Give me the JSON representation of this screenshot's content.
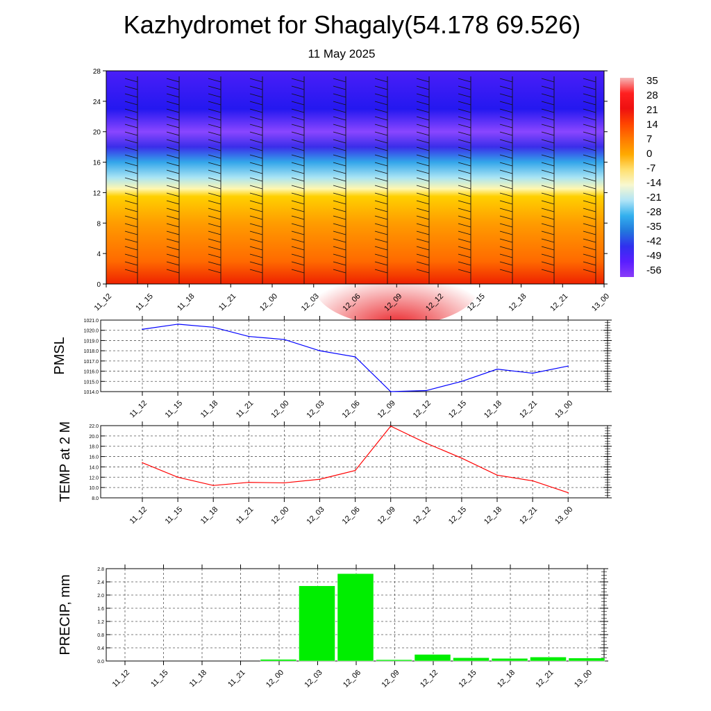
{
  "header": {
    "title": "Kazhydromet for Shagaly(54.178 69.526)",
    "subtitle": "11 May 2025"
  },
  "chart_data": [
    {
      "type": "heatmap",
      "title": "Kazhydromet for Shagaly(54.178 69.526)",
      "subtitle": "11 May 2025",
      "x_ticks": [
        "11_12",
        "11_15",
        "11_18",
        "11_21",
        "12_00",
        "12_03",
        "12_06",
        "12_09",
        "12_12",
        "12_15",
        "12_18",
        "12_21",
        "13_00"
      ],
      "y_ticks": [
        0,
        4,
        8,
        12,
        16,
        20,
        24,
        28
      ],
      "ylim": [
        0,
        28
      ],
      "colorbar": {
        "labels": [
          "35",
          "28",
          "21",
          "14",
          "7",
          "0",
          "-7",
          "-14",
          "-21",
          "-28",
          "-35",
          "-42",
          "-49",
          "-56"
        ],
        "range": [
          -56,
          35
        ]
      },
      "color_stops": [
        {
          "level": 0,
          "color": "#ee2200"
        },
        {
          "level": 3,
          "color": "#ff6a00"
        },
        {
          "level": 8,
          "color": "#ff9c00"
        },
        {
          "level": 11.5,
          "color": "#ffd000"
        },
        {
          "level": 12.5,
          "color": "#fff7b0"
        },
        {
          "level": 14,
          "color": "#a8e4f4"
        },
        {
          "level": 16,
          "color": "#33a6ea"
        },
        {
          "level": 18,
          "color": "#3a2eea"
        },
        {
          "level": 20,
          "color": "#8a46ff"
        },
        {
          "level": 23,
          "color": "#2418f0"
        },
        {
          "level": 28,
          "color": "#4a1ef8"
        }
      ],
      "grid": false,
      "wind_barbs": true
    },
    {
      "type": "line",
      "ylabel": "PMSL",
      "categories": [
        "11_12",
        "11_15",
        "11_18",
        "11_21",
        "12_00",
        "12_03",
        "12_06",
        "12_09",
        "12_12",
        "12_15",
        "12_18",
        "12_21",
        "13_00"
      ],
      "series": [
        {
          "values": [
            1020.1,
            1020.6,
            1020.3,
            1019.4,
            1019.1,
            1018.0,
            1017.4,
            1014.0,
            1014.1,
            1015.0,
            1016.2,
            1015.8,
            1016.5
          ],
          "color": "#0000ff"
        }
      ],
      "y_ticks": [
        "1014.0",
        "1015.0",
        "1016.0",
        "1017.0",
        "1018.0",
        "1019.0",
        "1020.0",
        "1021.0"
      ],
      "ylim": [
        1014,
        1021
      ],
      "grid": true
    },
    {
      "type": "line",
      "ylabel": "TEMP at 2 M",
      "categories": [
        "11_12",
        "11_15",
        "11_18",
        "11_21",
        "12_00",
        "12_03",
        "12_06",
        "12_09",
        "12_12",
        "12_15",
        "12_18",
        "12_21",
        "13_00"
      ],
      "series": [
        {
          "values": [
            14.8,
            12.0,
            10.4,
            11.0,
            10.9,
            11.6,
            13.3,
            21.9,
            18.6,
            15.7,
            12.4,
            11.3,
            9.0
          ],
          "color": "#ff0000"
        }
      ],
      "y_ticks": [
        "8.0",
        "10.0",
        "12.0",
        "14.0",
        "16.0",
        "18.0",
        "20.0",
        "22.0"
      ],
      "ylim": [
        8,
        22
      ],
      "grid": true
    },
    {
      "type": "bar",
      "ylabel": "PRECIP, mm",
      "categories": [
        "11_12",
        "11_15",
        "11_18",
        "11_21",
        "12_00",
        "12_03",
        "12_06",
        "12_09",
        "12_12",
        "12_15",
        "12_18",
        "12_21",
        "13_00"
      ],
      "values": [
        0,
        0,
        0,
        0,
        0.05,
        2.28,
        2.65,
        0.04,
        0.2,
        0.1,
        0.08,
        0.12,
        0.09
      ],
      "y_ticks": [
        "0.0",
        "0.4",
        "0.8",
        "1.2",
        "1.6",
        "2.0",
        "2.4",
        "2.8"
      ],
      "ylim": [
        0,
        2.8
      ],
      "bar_color": "#00ee00",
      "grid": true
    }
  ]
}
